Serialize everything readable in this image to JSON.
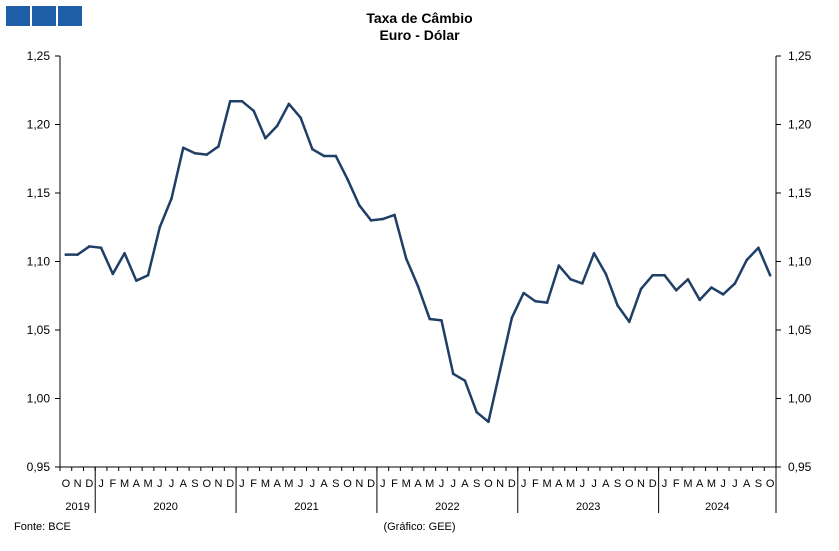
{
  "header": {
    "logo_colors": [
      "#1f5fa8",
      "#1f5fa8",
      "#1f5fa8"
    ]
  },
  "footer": {
    "source": "Fonte: BCE",
    "credit": "(Gráfico: GEE)"
  },
  "chart_data": {
    "type": "line",
    "title": "Taxa de Câmbio",
    "subtitle": "Euro - Dólar",
    "ylim": [
      0.95,
      1.25
    ],
    "y_ticks_left": [
      "0,95",
      "1,00",
      "1,05",
      "1,10",
      "1,15",
      "1,20",
      "1,25"
    ],
    "y_ticks_right": [
      "0,95",
      "1,00",
      "1,05",
      "1,10",
      "1,15",
      "1,20",
      "1,25"
    ],
    "grid": false,
    "line_color": "#1f3f66",
    "categories": [
      "O",
      "N",
      "D",
      "J",
      "F",
      "M",
      "A",
      "M",
      "J",
      "J",
      "A",
      "S",
      "O",
      "N",
      "D",
      "J",
      "F",
      "M",
      "A",
      "M",
      "J",
      "J",
      "A",
      "S",
      "O",
      "N",
      "D",
      "J",
      "F",
      "M",
      "A",
      "M",
      "J",
      "J",
      "A",
      "S",
      "O",
      "N",
      "D",
      "J",
      "F",
      "M",
      "A",
      "M",
      "J",
      "J",
      "A",
      "S",
      "O",
      "N",
      "D",
      "J",
      "F",
      "M",
      "A",
      "M",
      "J",
      "J",
      "A",
      "S",
      "O"
    ],
    "years": [
      {
        "label": "2019",
        "start": 0,
        "count": 3
      },
      {
        "label": "2020",
        "start": 3,
        "count": 12
      },
      {
        "label": "2021",
        "start": 15,
        "count": 12
      },
      {
        "label": "2022",
        "start": 27,
        "count": 12
      },
      {
        "label": "2023",
        "start": 39,
        "count": 12
      },
      {
        "label": "2024",
        "start": 51,
        "count": 10
      }
    ],
    "series": [
      {
        "values": [
          1.105,
          1.105,
          1.111,
          1.11,
          1.091,
          1.106,
          1.086,
          1.09,
          1.125,
          1.146,
          1.183,
          1.179,
          1.178,
          1.184,
          1.217,
          1.217,
          1.21,
          1.19,
          1.199,
          1.215,
          1.205,
          1.182,
          1.177,
          1.177,
          1.16,
          1.141,
          1.13,
          1.131,
          1.134,
          1.102,
          1.082,
          1.058,
          1.057,
          1.018,
          1.013,
          0.99,
          0.983,
          1.021,
          1.059,
          1.077,
          1.071,
          1.07,
          1.097,
          1.087,
          1.084,
          1.106,
          1.091,
          1.068,
          1.056,
          1.08,
          1.09,
          1.09,
          1.079,
          1.087,
          1.072,
          1.081,
          1.076,
          1.084,
          1.101,
          1.11,
          1.09
        ]
      }
    ]
  }
}
